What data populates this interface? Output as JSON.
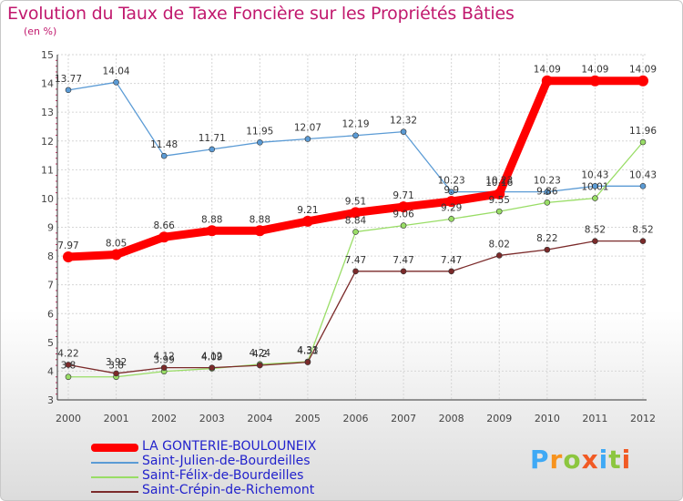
{
  "title": "Evolution du Taux de Taxe Foncière sur les Propriétés Bâties",
  "subtitle": "(en %)",
  "logo": {
    "letters": [
      "P",
      "r",
      "o",
      "x",
      "i",
      "t",
      "i"
    ],
    "colors": [
      "#3fa9f5",
      "#f7931e",
      "#8cc63f",
      "#f15a24",
      "#3fa9f5",
      "#8cc63f",
      "#f15a24"
    ]
  },
  "chart_data": {
    "type": "line",
    "title": "Evolution du Taux de Taxe Foncière sur les Propriétés Bâties",
    "ylabel": "(en %)",
    "xlabel": "",
    "x": [
      "2000",
      "2001",
      "2002",
      "2003",
      "2004",
      "2005",
      "2006",
      "2007",
      "2008",
      "2009",
      "2010",
      "2011",
      "2012"
    ],
    "ylim": [
      3,
      15
    ],
    "yticks": [
      "3",
      "4",
      "5",
      "6",
      "7",
      "8",
      "9",
      "10",
      "11",
      "12",
      "13",
      "14",
      "15"
    ],
    "legend_position": "bottom-left",
    "series": [
      {
        "name": "LA GONTERIE-BOULOUNEIX",
        "color": "#ff0000",
        "values": [
          7.97,
          8.05,
          8.66,
          8.88,
          8.88,
          9.21,
          9.51,
          9.71,
          9.9,
          10.16,
          14.09,
          14.09,
          14.09
        ],
        "labels": [
          "7.97",
          "8.05",
          "8.66",
          "8.88",
          "8.88",
          "9.21",
          "9.51",
          "9.71",
          "9.9",
          "10.16",
          "14.09",
          "14.09",
          "14.09"
        ]
      },
      {
        "name": "Saint-Julien-de-Bourdeilles",
        "color": "#5b9bd5",
        "values": [
          13.77,
          14.04,
          11.48,
          11.71,
          11.95,
          12.07,
          12.19,
          12.32,
          10.23,
          10.23,
          10.23,
          10.43,
          10.43
        ],
        "labels": [
          "13.77",
          "14.04",
          "11.48",
          "11.71",
          "11.95",
          "12.07",
          "12.19",
          "12.32",
          "10.23",
          "10.23",
          "10.23",
          "10.43",
          "10.43"
        ]
      },
      {
        "name": "Saint-Félix-de-Bourdeilles",
        "color": "#99dd66",
        "values": [
          3.8,
          3.8,
          3.99,
          4.09,
          4.24,
          4.33,
          8.84,
          9.06,
          9.29,
          9.55,
          9.86,
          10.01,
          11.96
        ],
        "labels": [
          "3.8",
          "3.8",
          "3.99",
          "4.09",
          "4.24",
          "4.33",
          "8.84",
          "9.06",
          "9.29",
          "9.55",
          "9.86",
          "10.01",
          "11.96"
        ]
      },
      {
        "name": "Saint-Crépin-de-Richemont",
        "color": "#7b2a2a",
        "values": [
          4.22,
          3.92,
          4.12,
          4.12,
          4.2,
          4.31,
          7.47,
          7.47,
          7.47,
          8.02,
          8.22,
          8.52,
          8.52
        ],
        "labels": [
          "4.22",
          "3.92",
          "4.12",
          "4.12",
          "4.2",
          "4.31",
          "7.47",
          "7.47",
          "7.47",
          "8.02",
          "8.22",
          "8.52",
          "8.52"
        ]
      }
    ]
  }
}
